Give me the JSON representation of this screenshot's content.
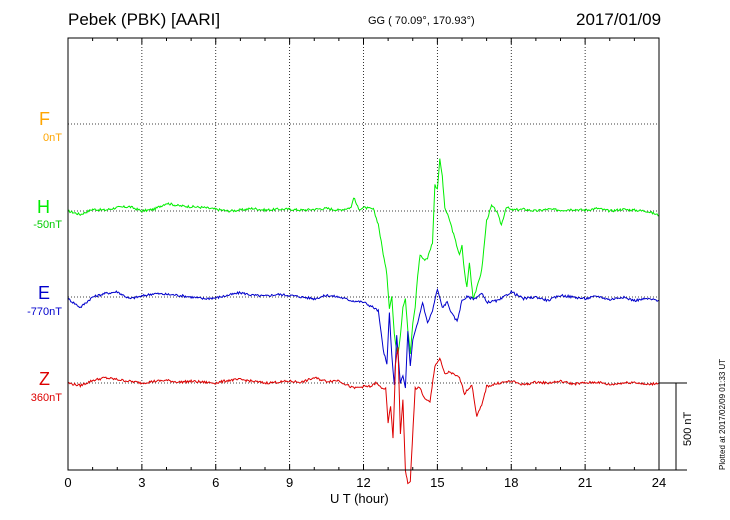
{
  "header": {
    "station": "Pebek (PBK)  [AARI]",
    "coords": "GG ( 70.09°, 170.93°)",
    "date": "2017/01/09"
  },
  "footer": {
    "plotted_note": "Plotted at 2017/02/09 01:33 UT",
    "scale_label": "500 nT"
  },
  "colors": {
    "F": "#ffa500",
    "H": "#00ee00",
    "E": "#0000cc",
    "Z": "#dd0000"
  },
  "chart_data": {
    "type": "line",
    "title": "Pebek (PBK)  [AARI]",
    "xlabel": "U T (hour)",
    "xlim": [
      0,
      24
    ],
    "x_ticks": [
      "0",
      "3",
      "6",
      "9",
      "12",
      "15",
      "18",
      "21",
      "24"
    ],
    "grid": true,
    "scale_bar_nT": 500,
    "components": [
      {
        "name": "F",
        "baseline_label": "0nT",
        "has_data": false
      },
      {
        "name": "H",
        "baseline_label": "-50nT",
        "has_data": true
      },
      {
        "name": "E",
        "baseline_label": "-770nT",
        "has_data": true
      },
      {
        "name": "Z",
        "baseline_label": "360nT",
        "has_data": true
      }
    ],
    "series": [
      {
        "name": "H",
        "unit": "nT",
        "x": [
          0,
          0.5,
          1,
          1.5,
          2,
          2.5,
          3,
          3.5,
          4,
          4.5,
          5,
          5.5,
          6,
          6.5,
          7,
          7.5,
          8,
          8.5,
          9,
          9.5,
          10,
          10.5,
          11,
          11.5,
          11.6,
          11.8,
          12,
          12.4,
          12.6,
          12.8,
          12.95,
          13.05,
          13.15,
          13.25,
          13.3,
          13.4,
          13.5,
          13.6,
          13.7,
          13.8,
          13.9,
          14.0,
          14.1,
          14.2,
          14.3,
          14.45,
          14.6,
          14.8,
          14.9,
          15.0,
          15.1,
          15.2,
          15.3,
          15.5,
          15.7,
          15.9,
          16.0,
          16.1,
          16.2,
          16.3,
          16.45,
          16.6,
          16.8,
          17.0,
          17.2,
          17.4,
          17.6,
          17.8,
          18,
          18.5,
          19,
          19.5,
          20,
          20.5,
          21,
          21.5,
          22,
          22.5,
          23,
          23.5,
          24
        ],
        "y": [
          0,
          -20,
          10,
          5,
          20,
          25,
          0,
          10,
          45,
          30,
          25,
          20,
          10,
          0,
          5,
          15,
          5,
          10,
          10,
          5,
          10,
          15,
          5,
          20,
          80,
          10,
          20,
          10,
          -75,
          -245,
          -365,
          -555,
          -490,
          -705,
          -765,
          -820,
          -710,
          -550,
          -500,
          -680,
          -820,
          -650,
          -550,
          -370,
          -250,
          -280,
          -270,
          -180,
          150,
          130,
          295,
          200,
          20,
          -55,
          -155,
          -255,
          -200,
          -350,
          -440,
          -295,
          -500,
          -445,
          -340,
          -55,
          30,
          0,
          -80,
          25,
          5,
          10,
          0,
          10,
          5,
          10,
          5,
          15,
          0,
          10,
          5,
          0,
          -25
        ]
      },
      {
        "name": "E",
        "unit": "nT",
        "x": [
          0,
          0.5,
          1,
          1.5,
          2,
          2.5,
          3,
          3.5,
          4,
          4.5,
          5,
          5.5,
          6,
          6.5,
          7,
          7.5,
          8,
          8.5,
          9,
          9.5,
          10,
          10.5,
          11,
          11.5,
          12,
          12.4,
          12.6,
          12.8,
          12.95,
          13.05,
          13.15,
          13.25,
          13.35,
          13.5,
          13.6,
          13.7,
          13.8,
          13.9,
          14.0,
          14.2,
          14.4,
          14.6,
          14.8,
          15.0,
          15.2,
          15.4,
          15.6,
          15.8,
          16.0,
          16.2,
          16.5,
          16.8,
          17.0,
          17.5,
          18,
          18.5,
          19,
          19.5,
          20,
          20.5,
          21,
          21.5,
          22,
          22.5,
          23,
          23.5,
          24
        ],
        "y": [
          -10,
          -60,
          0,
          20,
          30,
          -10,
          5,
          20,
          15,
          10,
          0,
          -10,
          -5,
          10,
          25,
          10,
          5,
          15,
          10,
          0,
          -10,
          10,
          0,
          -20,
          -30,
          -60,
          -80,
          -300,
          -390,
          -90,
          -340,
          -510,
          -225,
          -500,
          -450,
          -525,
          -200,
          -400,
          -250,
          -150,
          -30,
          -150,
          -80,
          45,
          -60,
          -30,
          -100,
          -140,
          -20,
          0,
          -10,
          20,
          -30,
          -20,
          30,
          -10,
          0,
          -20,
          10,
          0,
          -10,
          5,
          -15,
          0,
          -20,
          -10,
          -20
        ]
      },
      {
        "name": "Z",
        "unit": "nT",
        "x": [
          0,
          0.5,
          1,
          1.5,
          2,
          2.5,
          3,
          3.5,
          4,
          4.5,
          5,
          5.5,
          6,
          6.5,
          7,
          7.5,
          8,
          8.5,
          9,
          9.5,
          10,
          10.5,
          11,
          11.3,
          11.6,
          12,
          12.3,
          12.5,
          12.7,
          12.9,
          13.0,
          13.1,
          13.2,
          13.3,
          13.4,
          13.5,
          13.6,
          13.7,
          13.8,
          13.9,
          14.1,
          14.3,
          14.5,
          14.7,
          14.9,
          15.1,
          15.3,
          15.5,
          15.7,
          15.9,
          16.1,
          16.4,
          16.6,
          16.8,
          17.0,
          17.5,
          18,
          18.5,
          19,
          19.5,
          20,
          20.5,
          21,
          21.5,
          22,
          22.5,
          23,
          23.5,
          24
        ],
        "y": [
          0,
          -15,
          15,
          30,
          20,
          10,
          0,
          10,
          15,
          5,
          10,
          5,
          0,
          15,
          20,
          10,
          0,
          5,
          10,
          5,
          30,
          10,
          15,
          -10,
          -30,
          -20,
          -20,
          0,
          -25,
          -35,
          -230,
          -130,
          -320,
          105,
          205,
          -290,
          -90,
          -500,
          -580,
          -560,
          -30,
          -30,
          -95,
          -110,
          100,
          140,
          50,
          65,
          45,
          30,
          -60,
          -10,
          -190,
          -130,
          -20,
          0,
          10,
          -10,
          5,
          0,
          10,
          -5,
          0,
          5,
          -10,
          0,
          5,
          -10,
          0
        ]
      }
    ]
  }
}
